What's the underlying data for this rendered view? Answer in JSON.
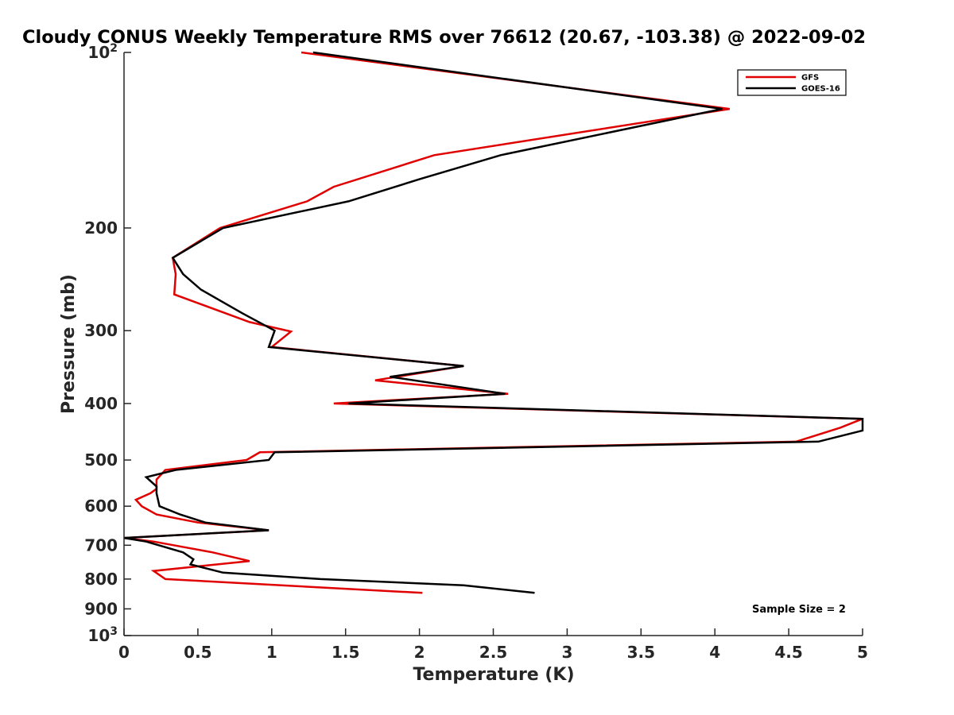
{
  "chart_data": {
    "type": "line",
    "title": "Cloudy CONUS Weekly Temperature RMS over 76612 (20.67, -103.38) @ 2022-09-02",
    "xlabel": "Temperature (K)",
    "ylabel": "Pressure (mb)",
    "xlim": [
      0,
      5
    ],
    "ylim": [
      100,
      1000
    ],
    "yscale": "log",
    "y_reversed": true,
    "x_ticks": [
      "0",
      "0.5",
      "1",
      "1.5",
      "2",
      "2.5",
      "3",
      "3.5",
      "4",
      "4.5",
      "5"
    ],
    "y_ticks": [
      {
        "value": 100,
        "base": "10",
        "exp": "2"
      },
      {
        "value": 200,
        "label": "200"
      },
      {
        "value": 300,
        "label": "300"
      },
      {
        "value": 400,
        "label": "400"
      },
      {
        "value": 500,
        "label": "500"
      },
      {
        "value": 600,
        "label": "600"
      },
      {
        "value": 700,
        "label": "700"
      },
      {
        "value": 800,
        "label": "800"
      },
      {
        "value": 900,
        "label": "900"
      },
      {
        "value": 1000,
        "base": "10",
        "exp": "3"
      }
    ],
    "legend": {
      "position": "top-right",
      "entries": [
        "GFS",
        "GOES-16"
      ]
    },
    "annotation": "Sample Size = 2",
    "series": [
      {
        "name": "GFS",
        "color": "#e00000",
        "points": [
          [
            1.2,
            100
          ],
          [
            4.1,
            125
          ],
          [
            2.1,
            150
          ],
          [
            1.42,
            170
          ],
          [
            1.24,
            180
          ],
          [
            0.65,
            200
          ],
          [
            0.33,
            225
          ],
          [
            0.35,
            240
          ],
          [
            0.34,
            260
          ],
          [
            0.85,
            290
          ],
          [
            1.13,
            301
          ],
          [
            1.0,
            320
          ],
          [
            2.3,
            345
          ],
          [
            1.7,
            365
          ],
          [
            2.6,
            385
          ],
          [
            1.42,
            400
          ],
          [
            5.0,
            425
          ],
          [
            4.85,
            440
          ],
          [
            4.55,
            465
          ],
          [
            0.92,
            485
          ],
          [
            0.83,
            500
          ],
          [
            0.28,
            520
          ],
          [
            0.22,
            540
          ],
          [
            0.22,
            560
          ],
          [
            0.18,
            570
          ],
          [
            0.08,
            585
          ],
          [
            0.12,
            600
          ],
          [
            0.22,
            620
          ],
          [
            0.5,
            640
          ],
          [
            0.98,
            660
          ],
          [
            0.0,
            680
          ],
          [
            0.2,
            690
          ],
          [
            0.6,
            720
          ],
          [
            0.85,
            745
          ],
          [
            0.2,
            775
          ],
          [
            0.28,
            800
          ],
          [
            2.02,
            845
          ]
        ]
      },
      {
        "name": "GOES-16",
        "color": "#000000",
        "points": [
          [
            1.28,
            100
          ],
          [
            4.05,
            125
          ],
          [
            2.55,
            150
          ],
          [
            2.0,
            165
          ],
          [
            1.52,
            180
          ],
          [
            0.67,
            200
          ],
          [
            0.33,
            225
          ],
          [
            0.4,
            240
          ],
          [
            0.52,
            255
          ],
          [
            0.8,
            280
          ],
          [
            1.02,
            300
          ],
          [
            0.98,
            320
          ],
          [
            2.3,
            345
          ],
          [
            1.8,
            360
          ],
          [
            2.58,
            385
          ],
          [
            1.52,
            400
          ],
          [
            5.0,
            425
          ],
          [
            5.0,
            445
          ],
          [
            4.7,
            465
          ],
          [
            1.02,
            485
          ],
          [
            0.98,
            500
          ],
          [
            0.35,
            520
          ],
          [
            0.15,
            535
          ],
          [
            0.22,
            555
          ],
          [
            0.22,
            570
          ],
          [
            0.24,
            600
          ],
          [
            0.38,
            620
          ],
          [
            0.55,
            640
          ],
          [
            0.98,
            660
          ],
          [
            0.0,
            680
          ],
          [
            0.15,
            690
          ],
          [
            0.4,
            720
          ],
          [
            0.47,
            740
          ],
          [
            0.45,
            755
          ],
          [
            0.67,
            780
          ],
          [
            1.33,
            800
          ],
          [
            2.3,
            820
          ],
          [
            2.78,
            845
          ]
        ]
      }
    ]
  }
}
